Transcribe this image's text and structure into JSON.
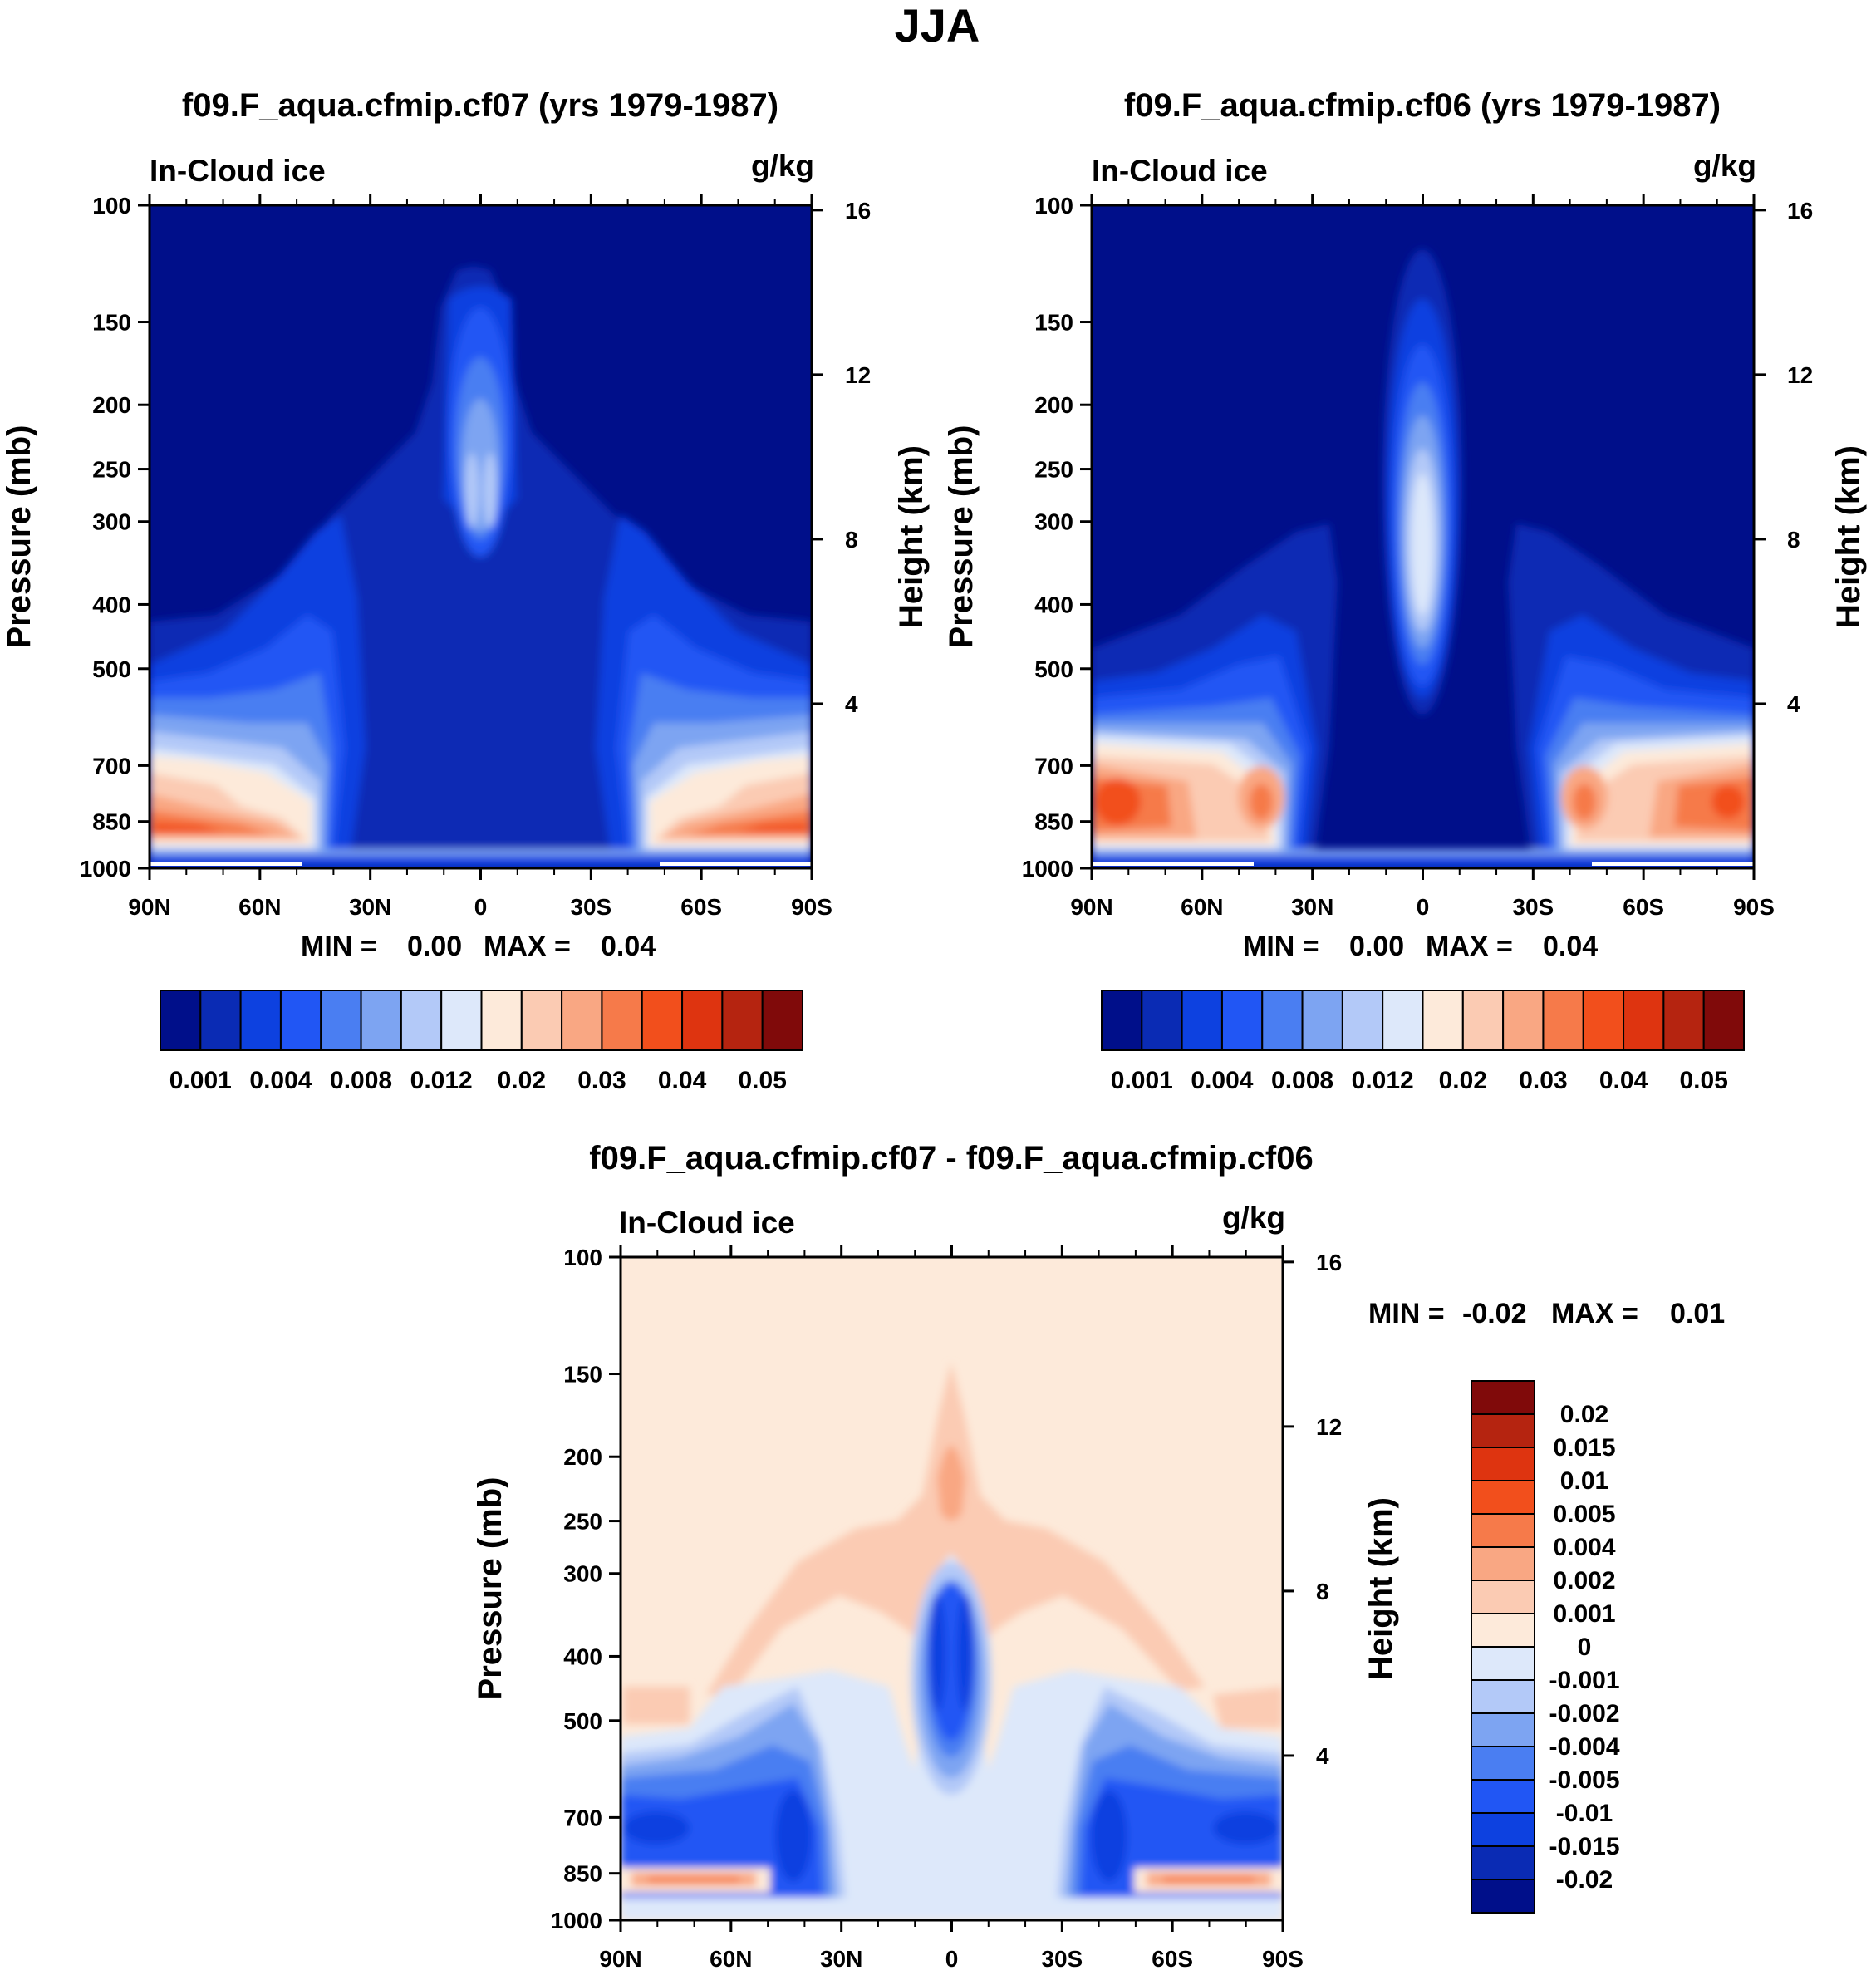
{
  "figure": {
    "title": "JJA"
  },
  "palettes": {
    "absolute": [
      "#000f8a",
      "#0a2bb4",
      "#0d41e0",
      "#2156f4",
      "#4a7ef2",
      "#7da4f2",
      "#b3c9f8",
      "#dde8fa",
      "#fdeada",
      "#fbcbb3",
      "#f9a783",
      "#f67a4a",
      "#f24f1c",
      "#de3410",
      "#b52410",
      "#800a0a"
    ],
    "difference": [
      "#000f8a",
      "#0a2bb4",
      "#0d41e0",
      "#2156f4",
      "#4a7ef2",
      "#7da4f2",
      "#b3c9f8",
      "#dde8fa",
      "#fdeada",
      "#fbcbb3",
      "#f9a783",
      "#f67a4a",
      "#f24f1c",
      "#de3410",
      "#b52410",
      "#800a0a"
    ]
  },
  "chart_data": [
    {
      "id": "top-left",
      "type": "heatmap",
      "title": "f09.F_aqua.cfmip.cf07 (yrs 1979-1987)",
      "left_label": "In-Cloud ice",
      "right_label": "g/kg",
      "ylabel": "Pressure (mb)",
      "y2label": "Height (km)",
      "xticks": [
        "90N",
        "60N",
        "30N",
        "0",
        "30S",
        "60S",
        "90S"
      ],
      "xlim_lat": [
        90,
        -90
      ],
      "yticks": [
        "100",
        "150",
        "200",
        "250",
        "300",
        "400",
        "500",
        "700",
        "850",
        "1000"
      ],
      "ylim_mb": [
        100,
        1000
      ],
      "y2ticks": [
        "16",
        "12",
        "8",
        "4"
      ],
      "y2_km": [
        16,
        12,
        8,
        4
      ],
      "stats": {
        "min_label": "MIN =",
        "min": "0.00",
        "max_label": "MAX =",
        "max": "0.04"
      },
      "colorbar": {
        "orientation": "horizontal",
        "labels": [
          "0.001",
          "0.004",
          "0.008",
          "0.012",
          "0.02",
          "0.03",
          "0.04",
          "0.05"
        ],
        "boundaries": [
          0.001,
          0.002,
          0.004,
          0.006,
          0.008,
          0.01,
          0.012,
          0.015,
          0.02,
          0.025,
          0.03,
          0.035,
          0.04,
          0.045,
          0.05
        ]
      },
      "features": [
        {
          "lat": 0,
          "mb": 300,
          "level": 7,
          "desc": "tropical upper-tropospheric maximum"
        },
        {
          "lat": 85,
          "mb": 850,
          "level": 12,
          "desc": "high-latitude low-level maximum"
        },
        {
          "lat": -85,
          "mb": 850,
          "level": 12,
          "desc": "high-latitude low-level maximum"
        }
      ]
    },
    {
      "id": "top-right",
      "type": "heatmap",
      "title": "f09.F_aqua.cfmip.cf06 (yrs 1979-1987)",
      "left_label": "In-Cloud ice",
      "right_label": "g/kg",
      "ylabel": "Pressure (mb)",
      "y2label": "Height (km)",
      "xticks": [
        "90N",
        "60N",
        "30N",
        "0",
        "30S",
        "60S",
        "90S"
      ],
      "xlim_lat": [
        90,
        -90
      ],
      "yticks": [
        "100",
        "150",
        "200",
        "250",
        "300",
        "400",
        "500",
        "700",
        "850",
        "1000"
      ],
      "ylim_mb": [
        100,
        1000
      ],
      "y2ticks": [
        "16",
        "12",
        "8",
        "4"
      ],
      "y2_km": [
        16,
        12,
        8,
        4
      ],
      "stats": {
        "min_label": "MIN =",
        "min": "0.00",
        "max_label": "MAX =",
        "max": "0.04"
      },
      "colorbar": {
        "orientation": "horizontal",
        "labels": [
          "0.001",
          "0.004",
          "0.008",
          "0.012",
          "0.02",
          "0.03",
          "0.04",
          "0.05"
        ],
        "boundaries": [
          0.001,
          0.002,
          0.004,
          0.006,
          0.008,
          0.01,
          0.012,
          0.015,
          0.02,
          0.025,
          0.03,
          0.035,
          0.04,
          0.045,
          0.05
        ]
      },
      "features": [
        {
          "lat": 0,
          "mb": 320,
          "level": 8,
          "desc": "tropical upper-tropospheric maximum"
        },
        {
          "lat": 80,
          "mb": 750,
          "level": 11,
          "desc": "high-latitude low-level maximum"
        },
        {
          "lat": -80,
          "mb": 750,
          "level": 11,
          "desc": "high-latitude low-level maximum"
        }
      ]
    },
    {
      "id": "bottom-diff",
      "type": "heatmap",
      "title": "f09.F_aqua.cfmip.cf07 - f09.F_aqua.cfmip.cf06",
      "left_label": "In-Cloud ice",
      "right_label": "g/kg",
      "ylabel": "Pressure (mb)",
      "y2label": "Height (km)",
      "xticks": [
        "90N",
        "60N",
        "30N",
        "0",
        "30S",
        "60S",
        "90S"
      ],
      "xlim_lat": [
        90,
        -90
      ],
      "yticks": [
        "100",
        "150",
        "200",
        "250",
        "300",
        "400",
        "500",
        "700",
        "850",
        "1000"
      ],
      "ylim_mb": [
        100,
        1000
      ],
      "y2ticks": [
        "16",
        "12",
        "8",
        "4"
      ],
      "y2_km": [
        16,
        12,
        8,
        4
      ],
      "stats": {
        "min_label": "MIN =",
        "min": "-0.02",
        "max_label": "MAX =",
        "max": "0.01"
      },
      "colorbar": {
        "orientation": "vertical",
        "labels": [
          "0.02",
          "0.015",
          "0.01",
          "0.005",
          "0.004",
          "0.002",
          "0.001",
          "0",
          "-0.001",
          "-0.002",
          "-0.004",
          "-0.005",
          "-0.01",
          "-0.015",
          "-0.02"
        ],
        "boundaries": [
          0.02,
          0.015,
          0.01,
          0.005,
          0.004,
          0.002,
          0.001,
          0,
          -0.001,
          -0.002,
          -0.004,
          -0.005,
          -0.01,
          -0.015,
          -0.02
        ]
      },
      "features": [
        {
          "lat": 0,
          "mb": 420,
          "level": 2,
          "desc": "tropical negative difference"
        },
        {
          "lat": 0,
          "mb": 200,
          "level": 10,
          "desc": "tropical upper positive difference"
        },
        {
          "lat": 80,
          "mb": 860,
          "level": 12,
          "desc": "high-latitude low-level positive"
        },
        {
          "lat": -80,
          "mb": 860,
          "level": 12,
          "desc": "high-latitude low-level positive"
        }
      ]
    }
  ]
}
